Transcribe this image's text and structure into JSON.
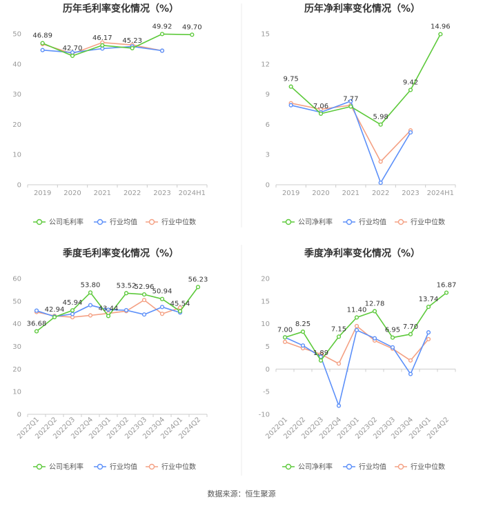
{
  "colors": {
    "company": "#5cc93a",
    "industry_avg": "#5b8ff9",
    "industry_median": "#f4a083"
  },
  "chart_data": [
    {
      "type": "line",
      "title": "历年毛利率变化情况（%）",
      "categories": [
        "2019",
        "2020",
        "2021",
        "2022",
        "2023",
        "2024H1"
      ],
      "ylim": [
        0,
        50
      ],
      "yticks": [
        0,
        10,
        20,
        30,
        40,
        50
      ],
      "series": [
        {
          "name": "公司毛利率",
          "values": [
            46.89,
            42.7,
            46.17,
            45.23,
            49.92,
            49.7
          ],
          "labels": [
            "46.89",
            "42.70",
            "46.17",
            "45.23",
            "49.92",
            "49.70"
          ]
        },
        {
          "name": "行业均值",
          "values": [
            44.6,
            43.8,
            45.1,
            45.8,
            44.4,
            null
          ]
        },
        {
          "name": "行业中位数",
          "values": [
            46.6,
            43.4,
            47.1,
            46.3,
            44.4,
            null
          ]
        }
      ]
    },
    {
      "type": "line",
      "title": "历年净利率变化情况（%）",
      "categories": [
        "2019",
        "2020",
        "2021",
        "2022",
        "2023",
        "2024H1"
      ],
      "ylim": [
        0,
        15
      ],
      "yticks": [
        0,
        3,
        6,
        9,
        12,
        15
      ],
      "series": [
        {
          "name": "公司净利率",
          "values": [
            9.75,
            7.06,
            7.77,
            5.98,
            9.42,
            14.96
          ],
          "labels": [
            "9.75",
            "7.06",
            "7.77",
            "5.98",
            "9.42",
            "14.96"
          ]
        },
        {
          "name": "行业均值",
          "values": [
            7.9,
            7.2,
            8.3,
            0.2,
            5.2,
            null
          ]
        },
        {
          "name": "行业中位数",
          "values": [
            8.1,
            7.5,
            7.9,
            2.3,
            5.4,
            null
          ]
        }
      ]
    },
    {
      "type": "line",
      "title": "季度毛利率变化情况（%）",
      "categories": [
        "2022Q1",
        "2022Q2",
        "2022Q3",
        "2022Q4",
        "2023Q1",
        "2023Q2",
        "2023Q3",
        "2023Q4",
        "2024Q1",
        "2024Q2"
      ],
      "ylim": [
        0,
        60
      ],
      "yticks": [
        0,
        10,
        20,
        30,
        40,
        50,
        60
      ],
      "series": [
        {
          "name": "公司毛利率",
          "values": [
            36.68,
            42.94,
            45.94,
            53.8,
            43.44,
            53.52,
            52.96,
            50.94,
            45.54,
            56.23
          ],
          "labels": [
            "36.68",
            "42.94",
            "45.94",
            "53.80",
            "43.44",
            "53.52",
            "52.96",
            "50.94",
            "45.54",
            "56.23"
          ]
        },
        {
          "name": "行业均值",
          "values": [
            45.8,
            43.2,
            44.3,
            48.2,
            46.2,
            46.0,
            44.1,
            47.4,
            45.0,
            null
          ]
        },
        {
          "name": "行业中位数",
          "values": [
            45.2,
            43.5,
            42.9,
            43.7,
            44.6,
            45.6,
            50.5,
            44.4,
            47.1,
            null
          ]
        }
      ]
    },
    {
      "type": "line",
      "title": "季度净利率变化情况（%）",
      "categories": [
        "2022Q1",
        "2022Q2",
        "2022Q3",
        "2022Q4",
        "2023Q1",
        "2023Q2",
        "2023Q3",
        "2023Q4",
        "2024Q1",
        "2024Q2"
      ],
      "ylim": [
        -10,
        20
      ],
      "yticks": [
        -10,
        -5,
        0,
        5,
        10,
        15,
        20
      ],
      "series": [
        {
          "name": "公司净利率",
          "values": [
            7.0,
            8.25,
            1.89,
            7.15,
            11.4,
            12.78,
            6.95,
            7.7,
            13.74,
            16.87
          ],
          "labels": [
            "7.00",
            "8.25",
            "1.89",
            "7.15",
            "11.40",
            "12.78",
            "6.95",
            "7.70",
            "13.74",
            "16.87"
          ]
        },
        {
          "name": "行业均值",
          "values": [
            7.0,
            5.2,
            2.7,
            -8.1,
            8.6,
            6.8,
            4.8,
            -1.1,
            8.1,
            null
          ]
        },
        {
          "name": "行业中位数",
          "values": [
            6.0,
            4.6,
            3.3,
            1.2,
            9.5,
            6.3,
            4.5,
            1.9,
            6.6,
            null
          ]
        }
      ]
    }
  ],
  "source": "数据来源：恒生聚源"
}
